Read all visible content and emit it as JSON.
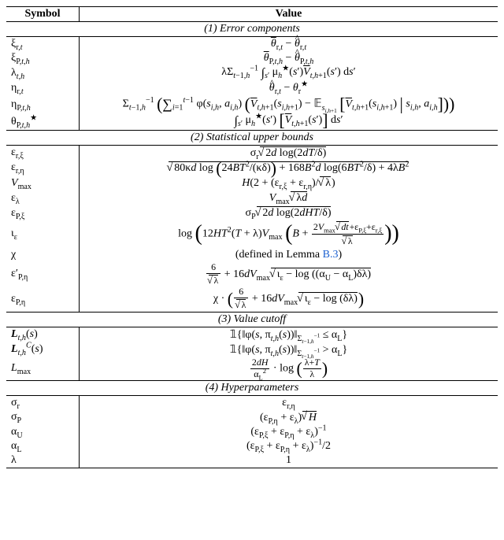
{
  "table": {
    "header": {
      "symbol": "Symbol",
      "value": "Value"
    },
    "sections": [
      {
        "title": "(1) Error components",
        "rows": [
          {
            "sym": "ξ<sub>r,<i>t</i></sub>",
            "val": "<span class='ovl'><i>θ</i></span><sub>r,<i>t</i></sub> − <span class='hat'><i>θ</i></span><sub>r,<i>t</i></sub>"
          },
          {
            "sym": "ξ<sub>P,<i>t</i>,<i>h</i></sub>",
            "val": "<span class='ovl'><i>θ</i></span><sub>P,<i>t</i>,<i>h</i></sub> − <span class='hat'><i>θ</i></span><sub>P,<i>t</i>,<i>h</i></sub>"
          },
          {
            "sym": "λ<sub><i>t</i>,<i>h</i></sub>",
            "val": "λΣ<sub><i>t</i>−1,<i>h</i></sub><sup>−1</sup> <span class='int'>∫</span><sub><i>s</i>′</sub>  μ<sub><i>h</i></sub><sup>★</sup>(<i>s</i>′)<span class='ovl'><i>V</i></span><sub><i>t</i>,<i>h</i>+1</sub>(<i>s</i>′)  d<i>s</i>′"
          },
          {
            "sym": "η<sub>r,<i>t</i></sub>",
            "val": "<span class='hat'><i>θ</i></span><sub>r,<i>t</i></sub> − <i>θ</i><sub>r</sub><sup>★</sup>"
          },
          {
            "sym": "η<sub>P,<i>t</i>,<i>h</i></sub>",
            "val": "Σ<sub><i>t</i>−1,<i>h</i></sub><sup>−1</sup> <span class='big'>(</span><span class='sum'>∑</span><sub><i>i</i>=1</sub><sup><i>t</i>−1</sup> φ(<i>s</i><sub><i>i</i>,<i>h</i></sub>, <i>a</i><sub><i>i</i>,<i>h</i></sub>) <span class='big'>(</span><span class='ovl'><i>V</i></span><sub><i>t</i>,<i>h</i>+1</sub>(<i>s</i><sub><i>i</i>,<i>h</i>+1</sub>) − <span class='bb'>𝔼</span><sub><i>s</i><sub><i>i</i>,<i>h</i>+1</sub></sub> <span class='big'>[</span><span class='ovl'><i>V</i></span><sub><i>t</i>,<i>h</i>+1</sub>(<i>s</i><sub><i>i</i>,<i>h</i>+1</sub>) <span class='big'>|</span> <i>s</i><sub><i>i</i>,<i>h</i></sub>, <i>a</i><sub><i>i</i>,<i>h</i></sub><span class='big'>]</span><span class='big'>)</span><span class='big'>)</span>"
          },
          {
            "sym": "θ<sub>P,<i>t</i>,<i>h</i></sub><sup>★</sup>",
            "val": "<span class='int'>∫</span><sub><i>s</i>′</sub>  μ<sub><i>h</i></sub><sup>★</sup>(<i>s</i>′) <span class='big'>[</span><span class='ovl'><i>V</i></span><sub><i>t</i>,<i>h</i>+1</sub>(<i>s</i>′)<span class='big'>]</span>  d<i>s</i>′"
          }
        ]
      },
      {
        "title": "(2) Statistical upper bounds",
        "rows": [
          {
            "sym": "ε<sub>r,ξ</sub>",
            "val": "σ<sub>r</sub><span class='sqrt'>2<i>d</i> log(2<i>dT</i>/δ)</span>"
          },
          {
            "sym": "ε<sub>r,η</sub>",
            "val": "<span class='sqrt'>80κ<i>d</i> log <span class='big'>(</span>24<i>BT</i><sup>2</sup>/(<span class='ovl'>κ</span>δ)<span class='big'>)</span> + 168<i>B</i><sup>2</sup><i>d</i> log(6<i>BT</i><sup>2</sup>/δ) + 4λ<i>B</i><sup>2</sup></span>",
            "tall": true
          },
          {
            "sym": "<i>V</i><sub>max</sub>",
            "val": "<i>H</i>(2 + (ε<sub>r,ξ</sub> + ε<sub>r,η</sub>)/<span class='sqrt'>λ</span>)"
          },
          {
            "sym": "ε<sub>λ</sub>",
            "val": "<i>V</i><sub>max</sub><span class='sqrt'>λ<i>d</i></span>"
          },
          {
            "sym": "ε<sub>P,ξ</sub>",
            "val": "σ<sub>P</sub><span class='sqrt'>2<i>d</i> log(2<i>dHT</i>/δ)</span>"
          },
          {
            "sym": "ι<sub>ε</sub>",
            "val": "log <span class='bigg'>(</span>12<i>HT</i><sup>2</sup>(<i>T</i> + λ)<i>V</i><sub>max</sub> <span class='bigg'>(</span><i>B</i> + <span class='frac'><span class='n'>2<i>V</i><sub>max</sub><span class='sqrt'><i>dt</i></span>+ε<sub>P,ξ</sub>+ε<sub>r,ξ</sub></span><span class='d'><span class='sqrt'>λ</span></span></span><span class='bigg'>)</span><span class='bigg'>)</span>",
            "tall": true
          },
          {
            "sym": "χ",
            "val": "(defined in Lemma <span class='lemma-link'>B.3</span>)"
          },
          {
            "sym": "ε′<sub>P,η</sub>",
            "val": "<span class='frac'><span class='n'>6</span><span class='d'><span class='sqrt'>λ</span></span></span> + 16<i>dV</i><sub>max</sub><span class='sqrt'>ι<sub>ε</sub> − log ((α<sub>U</sub> − α<sub>L</sub>)δλ)</span>",
            "tall": true
          },
          {
            "sym": "ε<sub>P,η</sub>",
            "val": "χ · <span class='big'>(</span><span class='frac'><span class='n'>6</span><span class='d'><span class='sqrt'>λ</span></span></span> + 16<i>dV</i><sub>max</sub><span class='sqrt'>ι<sub>ε</sub> − log (δλ)</span><span class='big'>)</span>",
            "tall": true
          }
        ]
      },
      {
        "title": "(3) Value cutoff",
        "rows": [
          {
            "sym": "<b><i>L</i></b><sub><i>t</i>,<i>h</i></sub>(<i>s</i>)",
            "val": "<span class='bb'>𝟙</span>{‖φ(<i>s</i>, π<sub><i>t</i>,<i>h</i></sub>(<i>s</i>))‖<sub>Σ<sub><i>t</i>−1,<i>h</i></sub><sup>−1</sup></sub> ≤ α<sub>L</sub>}"
          },
          {
            "sym": "<b><i>L</i></b><sub><i>t</i>,<i>h</i></sub><sup><span class='scr'>C</span></sup>(<i>s</i>)",
            "val": "<span class='bb'>𝟙</span>{‖φ(<i>s</i>, π<sub><i>t</i>,<i>h</i></sub>(<i>s</i>))‖<sub>Σ<sub><i>t</i>−1,<i>h</i></sub><sup>−1</sup></sub> &gt; α<sub>L</sub>}"
          },
          {
            "sym": "<i>L</i><sub>max</sub>",
            "val": "<span class='frac'><span class='n'>2<i>dH</i></span><span class='d'>α<sub>L</sub><sup>2</sup></span></span> · log <span class='big'>(</span><span class='frac'><span class='n'>λ+<i>T</i></span><span class='d'>λ</span></span><span class='big'>)</span>",
            "tall": true
          }
        ]
      },
      {
        "title": "(4) Hyperparameters",
        "rows": [
          {
            "sym": "σ<sub>r</sub>",
            "val": "ε<sub>r,η</sub>"
          },
          {
            "sym": "σ<sub>P</sub>",
            "val": "(ε<sub>P,η</sub> + ε<sub>λ</sub>)<span class='sqrt'><i>H</i></span>"
          },
          {
            "sym": "α<sub>U</sub>",
            "val": "(ε<sub>P,ξ</sub> + ε<sub>P,η</sub> + ε<sub>λ</sub>)<sup>−1</sup>"
          },
          {
            "sym": "α<sub>L</sub>",
            "val": "(ε<sub>P,ξ</sub> + ε<sub>P,η</sub> + ε<sub>λ</sub>)<sup>−1</sup>/2"
          },
          {
            "sym": "λ",
            "val": "1"
          }
        ]
      }
    ]
  }
}
